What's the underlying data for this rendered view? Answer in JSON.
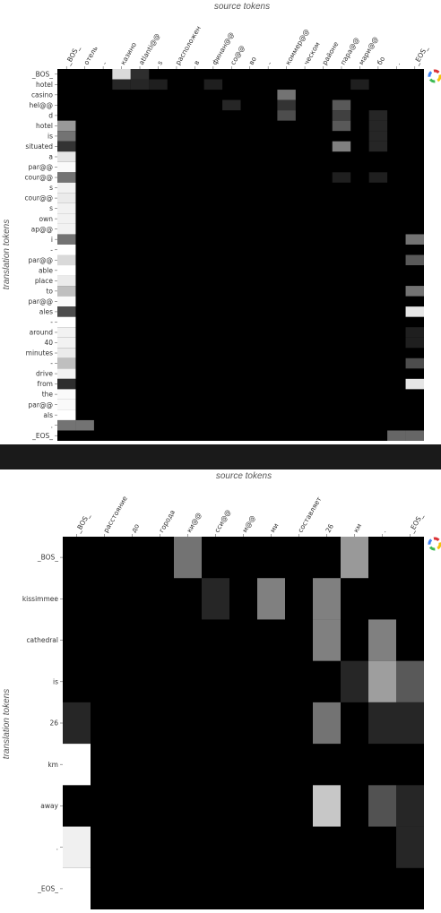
{
  "chart_data": [
    {
      "type": "heatmap",
      "xlabel": "source tokens",
      "ylabel": "translation tokens",
      "x_ticks": [
        "_BOS_",
        "отель",
        "-",
        "казино",
        "atlanti@@",
        "s",
        "расположен",
        "в",
        "финан@@",
        "со@@",
        "во",
        "-",
        "коммер@@",
        "ческом",
        "районе",
        "пара@@",
        "мари@@",
        "бо",
        ".",
        "_EOS_"
      ],
      "y_ticks": [
        "_BOS_",
        "hotel",
        "casino",
        "hel@@",
        "d",
        "hotel",
        "is",
        "situated",
        "a",
        "par@@",
        "cour@@",
        "s",
        "cour@@",
        "s",
        "own",
        "ap@@",
        "i",
        "-",
        "par@@",
        "able",
        "place",
        "to",
        "par@@",
        "ales",
        "-",
        "around",
        "40",
        "minutes",
        "-",
        "drive",
        "from",
        "the",
        "par@@",
        "als",
        ".",
        "_EOS_"
      ],
      "cells": [
        [
          0,
          3,
          0.85
        ],
        [
          0,
          4,
          0.18
        ],
        [
          1,
          3,
          0.15
        ],
        [
          1,
          4,
          0.15
        ],
        [
          1,
          5,
          0.12
        ],
        [
          1,
          8,
          0.12
        ],
        [
          1,
          16,
          0.12
        ],
        [
          2,
          12,
          0.45
        ],
        [
          3,
          9,
          0.15
        ],
        [
          3,
          12,
          0.2
        ],
        [
          3,
          15,
          0.35
        ],
        [
          4,
          12,
          0.3
        ],
        [
          4,
          15,
          0.25
        ],
        [
          4,
          17,
          0.15
        ],
        [
          5,
          0,
          0.6
        ],
        [
          5,
          15,
          0.35
        ],
        [
          5,
          17,
          0.15
        ],
        [
          6,
          0,
          0.45
        ],
        [
          6,
          17,
          0.15
        ],
        [
          7,
          0,
          0.2
        ],
        [
          7,
          15,
          0.5
        ],
        [
          7,
          17,
          0.15
        ],
        [
          8,
          0,
          0.9
        ],
        [
          9,
          0,
          0.98
        ],
        [
          10,
          0,
          0.45
        ],
        [
          10,
          15,
          0.12
        ],
        [
          10,
          17,
          0.12
        ],
        [
          11,
          0,
          0.95
        ],
        [
          12,
          0,
          0.92
        ],
        [
          13,
          0,
          0.95
        ],
        [
          14,
          0,
          0.95
        ],
        [
          15,
          0,
          0.95
        ],
        [
          16,
          0,
          0.45
        ],
        [
          16,
          19,
          0.45
        ],
        [
          17,
          0,
          1.0
        ],
        [
          18,
          0,
          0.85
        ],
        [
          18,
          19,
          0.35
        ],
        [
          19,
          0,
          1.0
        ],
        [
          20,
          0,
          0.92
        ],
        [
          21,
          0,
          0.75
        ],
        [
          21,
          19,
          0.45
        ],
        [
          22,
          0,
          0.98
        ],
        [
          23,
          0,
          0.3
        ],
        [
          23,
          19,
          0.9
        ],
        [
          24,
          0,
          1.0
        ],
        [
          25,
          0,
          0.95
        ],
        [
          25,
          19,
          0.12
        ],
        [
          26,
          0,
          0.95
        ],
        [
          26,
          19,
          0.12
        ],
        [
          27,
          0,
          0.92
        ],
        [
          28,
          0,
          0.75
        ],
        [
          28,
          19,
          0.3
        ],
        [
          29,
          0,
          0.95
        ],
        [
          30,
          0,
          0.18
        ],
        [
          30,
          19,
          0.9
        ],
        [
          31,
          0,
          0.98
        ],
        [
          32,
          0,
          0.98
        ],
        [
          33,
          0,
          1.0
        ],
        [
          34,
          0,
          0.45
        ],
        [
          34,
          1,
          0.45
        ],
        [
          35,
          18,
          0.4
        ],
        [
          35,
          19,
          0.4
        ]
      ]
    },
    {
      "type": "heatmap",
      "xlabel": "source tokens",
      "ylabel": "translation tokens",
      "x_ticks": [
        "_BOS_",
        "расстояние",
        "до",
        "города",
        "ки@@",
        "сси@@",
        "м@@",
        "ми",
        "составляет",
        "26",
        "км",
        ".",
        "_EOS_"
      ],
      "y_ticks": [
        "_BOS_",
        "kissimmee",
        "cathedral",
        "is",
        "26",
        "km",
        "away",
        ".",
        "_EOS_"
      ],
      "cells": [
        [
          0,
          4,
          0.45
        ],
        [
          0,
          10,
          0.6
        ],
        [
          1,
          5,
          0.15
        ],
        [
          1,
          7,
          0.5
        ],
        [
          1,
          9,
          0.5
        ],
        [
          2,
          9,
          0.5
        ],
        [
          2,
          11,
          0.5
        ],
        [
          3,
          10,
          0.15
        ],
        [
          3,
          11,
          0.62
        ],
        [
          3,
          12,
          0.35
        ],
        [
          4,
          0,
          0.15
        ],
        [
          4,
          9,
          0.45
        ],
        [
          4,
          11,
          0.15
        ],
        [
          4,
          12,
          0.15
        ],
        [
          5,
          0,
          1.0
        ],
        [
          6,
          9,
          0.78
        ],
        [
          6,
          11,
          0.32
        ],
        [
          6,
          12,
          0.15
        ],
        [
          7,
          0,
          0.94
        ],
        [
          7,
          12,
          0.15
        ],
        [
          8,
          0,
          1.0
        ]
      ]
    }
  ]
}
